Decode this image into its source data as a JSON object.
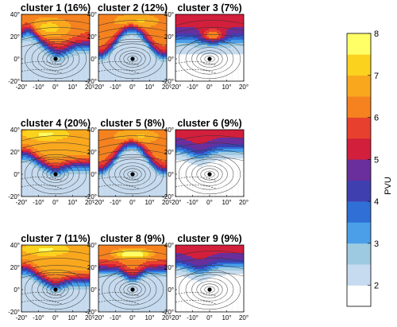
{
  "chart_data": {
    "type": "heatmap",
    "panels": [
      {
        "title": "cluster 1 (16%)",
        "pattern": "trough"
      },
      {
        "title": "cluster 2 (12%)",
        "pattern": "wave"
      },
      {
        "title": "cluster 3 (7%)",
        "pattern": "blob"
      },
      {
        "title": "cluster 4 (20%)",
        "pattern": "broad"
      },
      {
        "title": "cluster 5 (8%)",
        "pattern": "wave"
      },
      {
        "title": "cluster 6 (9%)",
        "pattern": "weak"
      },
      {
        "title": "cluster 7 (11%)",
        "pattern": "broad"
      },
      {
        "title": "cluster 8 (9%)",
        "pattern": "zonal"
      },
      {
        "title": "cluster 9 (9%)",
        "pattern": "weak"
      }
    ],
    "x_ticks": [
      "-20°",
      "-10°",
      "0°",
      "10°",
      "20°"
    ],
    "y_ticks": [
      "40°",
      "20°",
      "0°",
      "-20°"
    ],
    "xlim": [
      -20,
      20
    ],
    "ylim": [
      -20,
      40
    ],
    "colorbar": {
      "label": "PVU",
      "ticks": [
        "2",
        "3",
        "4",
        "5",
        "6",
        "7",
        "8"
      ],
      "range": [
        1.5,
        8
      ],
      "levels": [
        1.5,
        2,
        2.5,
        3,
        3.5,
        4,
        4.5,
        5,
        5.5,
        6,
        6.5,
        7,
        7.5,
        8
      ],
      "colors": [
        "#ffffff",
        "#c6dbef",
        "#9ecae1",
        "#4a9fe8",
        "#2f6fd6",
        "#3f3fb0",
        "#6a2f9c",
        "#d21f3c",
        "#e8402e",
        "#f5821f",
        "#f9a81e",
        "#fbd21e",
        "#ffff66"
      ]
    }
  }
}
